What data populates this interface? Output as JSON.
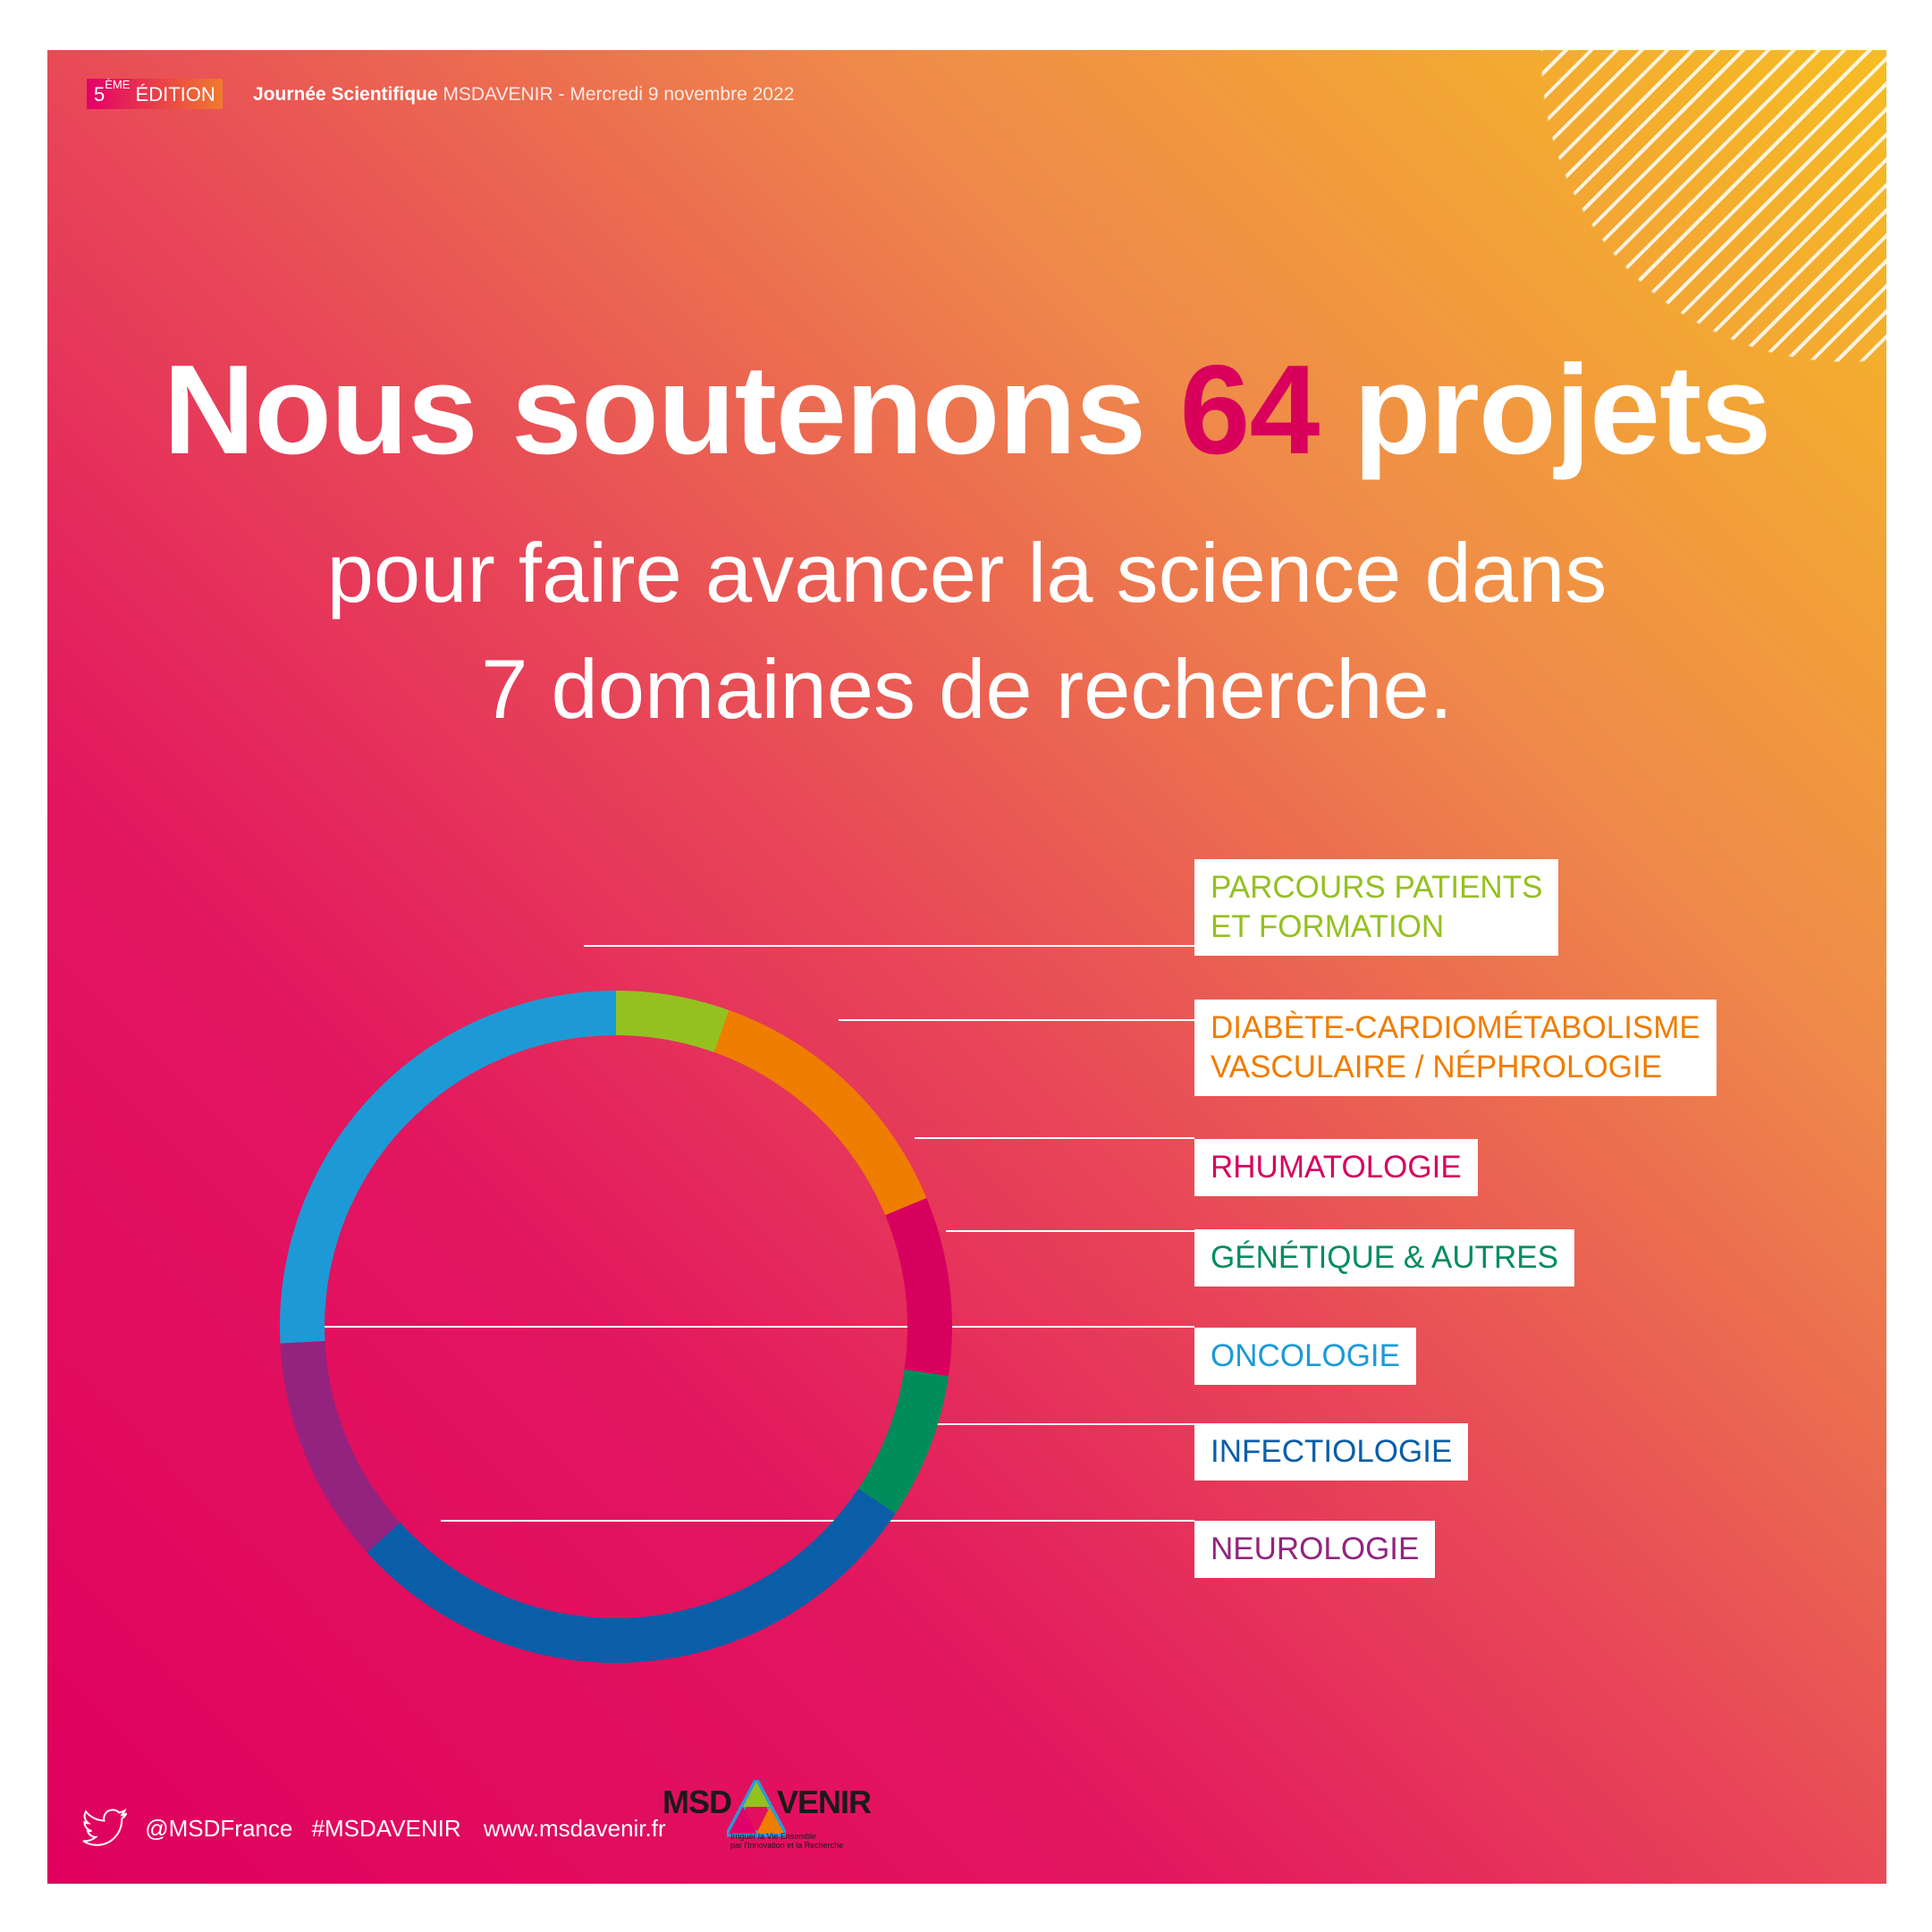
{
  "header": {
    "edition_num": "5",
    "edition_sup": "ÈME",
    "edition_word": "ÉDITION",
    "event_bold": "Journée Scientifique",
    "event_rest": "MSDAVENIR - Mercredi 9 novembre 2022"
  },
  "headline": {
    "part1": "Nous soutenons",
    "number": "64",
    "part2": "projets",
    "line2": "pour faire avancer la science dans",
    "line3": "7 domaines de recherche."
  },
  "chart_data": {
    "type": "pie",
    "variant": "donut",
    "title": "",
    "categories": [
      "PARCOURS PATIENTS ET FORMATION",
      "DIABÈTE-CARDIOMÉTABOLISME VASCULAIRE / NÉPHROLOGIE",
      "RHUMATOLOGIE",
      "GÉNÉTIQUE & AUTRES",
      "INFECTIOLOGIE",
      "NEUROLOGIE",
      "ONCOLOGIE"
    ],
    "values": [
      3.5,
      8.5,
      5.5,
      4.5,
      18.5,
      7.0,
      16.5
    ],
    "colors": [
      "#95c11f",
      "#ef7d00",
      "#d8005f",
      "#008d5b",
      "#0a5ea8",
      "#93237f",
      "#1d9ad6"
    ],
    "start_angle_deg": 0,
    "total_projects": 64
  },
  "labels": [
    {
      "id": "parcours",
      "l1": "PARCOURS PATIENTS",
      "l2": "ET FORMATION",
      "color": "#95c11f"
    },
    {
      "id": "diabete",
      "l1": "DIABÈTE-CARDIOMÉTABOLISME",
      "l2": "VASCULAIRE / NÉPHROLOGIE",
      "color": "#ef7d00"
    },
    {
      "id": "rhumato",
      "l1": "RHUMATOLOGIE",
      "l2": "",
      "color": "#d8005f"
    },
    {
      "id": "genetique",
      "l1": "GÉNÉTIQUE & AUTRES",
      "l2": "",
      "color": "#008d5b"
    },
    {
      "id": "oncologie",
      "l1": "ONCOLOGIE",
      "l2": "",
      "color": "#1d9ad6"
    },
    {
      "id": "infectio",
      "l1": "INFECTIOLOGIE",
      "l2": "",
      "color": "#0a5ea8"
    },
    {
      "id": "neuro",
      "l1": "NEUROLOGIE",
      "l2": "",
      "color": "#93237f"
    }
  ],
  "footer": {
    "twitter": "@MSDFrance",
    "hashtag": "#MSDAVENIR",
    "website": "www.msdavenir.fr",
    "logo_left": "MSD",
    "logo_right": "VENIR",
    "logo_tagline1": "Irriguer la Vie Ensemble",
    "logo_tagline2": "par l'Innovation et la Recherche"
  }
}
